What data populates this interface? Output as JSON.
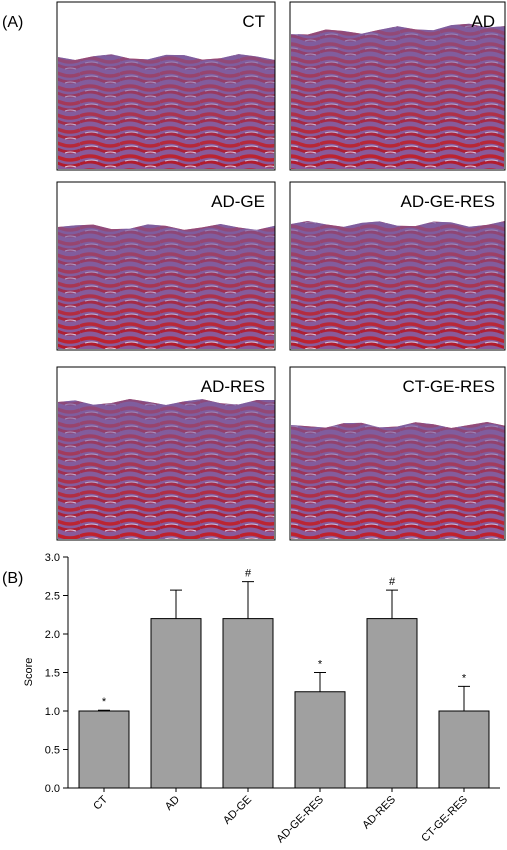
{
  "panel_a": {
    "label": "(A)",
    "images": [
      {
        "label": "CT"
      },
      {
        "label": "AD"
      },
      {
        "label": "AD-GE"
      },
      {
        "label": "AD-GE-RES"
      },
      {
        "label": "AD-RES"
      },
      {
        "label": "CT-GE-RES"
      }
    ]
  },
  "chart_data": {
    "type": "bar",
    "panel_label": "(B)",
    "ylabel": "Score",
    "categories": [
      "CT",
      "AD",
      "AD-GE",
      "AD-GE-RES",
      "AD-RES",
      "CT-GE-RES"
    ],
    "values": [
      1.0,
      2.2,
      2.2,
      1.25,
      2.2,
      1.0
    ],
    "errors": [
      0.01,
      0.37,
      0.48,
      0.25,
      0.37,
      0.32
    ],
    "annotations": [
      "*",
      null,
      "#",
      "*",
      "#",
      "*"
    ],
    "color": "#a0a0a0",
    "ylim": [
      0,
      3
    ],
    "yticks": [
      {
        "value": 0,
        "label": "0.0"
      },
      {
        "value": 0.5,
        "label": "0.5"
      },
      {
        "value": 1,
        "label": "1.0"
      },
      {
        "value": 1.5,
        "label": "1.5"
      },
      {
        "value": 2,
        "label": "2.0"
      },
      {
        "value": 2.5,
        "label": "2.5"
      },
      {
        "value": 3,
        "label": "3.0"
      }
    ]
  }
}
